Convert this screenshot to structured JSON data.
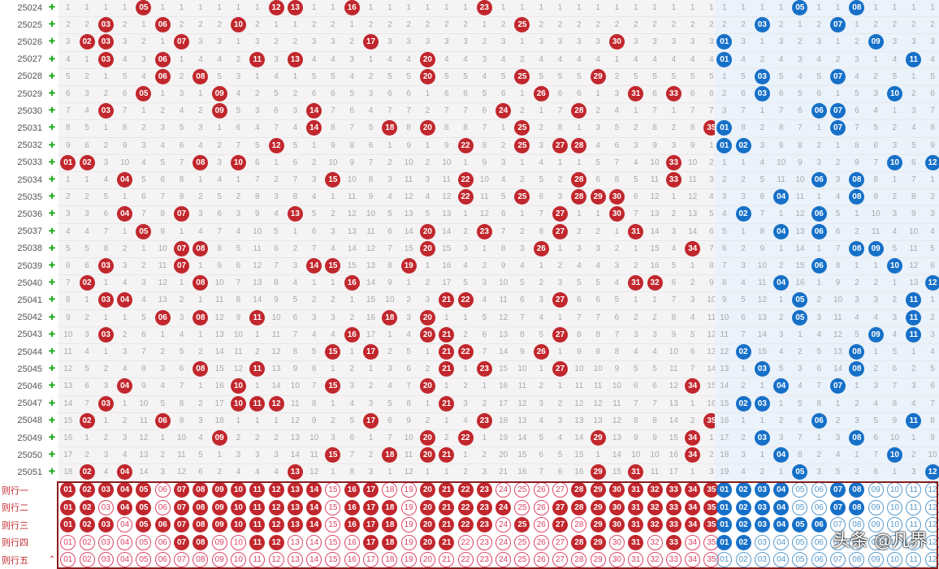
{
  "draws": [
    {
      "id": "25024",
      "red": [
        5,
        12,
        13,
        16,
        23
      ],
      "blue": [
        5,
        8
      ]
    },
    {
      "id": "25025",
      "red": [
        3,
        6,
        10,
        25
      ],
      "blue": [
        3,
        7
      ]
    },
    {
      "id": "25026",
      "red": [
        2,
        3,
        7,
        17,
        30
      ],
      "blue": [
        1,
        9
      ]
    },
    {
      "id": "25027",
      "red": [
        3,
        6,
        11,
        13,
        20
      ],
      "blue": [
        1,
        11
      ]
    },
    {
      "id": "25028",
      "red": [
        6,
        8,
        20,
        25,
        29
      ],
      "blue": [
        3,
        7
      ]
    },
    {
      "id": "25029",
      "red": [
        5,
        9,
        26,
        31,
        33
      ],
      "blue": [
        3,
        10
      ]
    },
    {
      "id": "25030",
      "red": [
        3,
        9,
        14,
        24,
        28
      ],
      "blue": [
        6,
        7
      ]
    },
    {
      "id": "25031",
      "red": [
        14,
        18,
        20,
        25,
        35
      ],
      "blue": [
        1,
        7
      ]
    },
    {
      "id": "25032",
      "red": [
        12,
        22,
        25,
        27,
        28
      ],
      "blue": [
        1,
        2
      ]
    },
    {
      "id": "25033",
      "red": [
        1,
        2,
        8,
        10,
        33
      ],
      "blue": [
        10,
        12
      ]
    },
    {
      "id": "25034",
      "red": [
        4,
        15,
        22,
        28,
        33
      ],
      "blue": [
        6,
        8
      ]
    },
    {
      "id": "25035",
      "red": [
        22,
        25,
        28,
        29,
        30
      ],
      "blue": [
        4,
        8
      ]
    },
    {
      "id": "25036",
      "red": [
        4,
        7,
        13,
        27,
        30
      ],
      "blue": [
        2,
        6
      ]
    },
    {
      "id": "25037",
      "red": [
        5,
        20,
        23,
        27,
        31
      ],
      "blue": [
        4,
        6
      ]
    },
    {
      "id": "25038",
      "red": [
        7,
        8,
        20,
        26,
        34
      ],
      "blue": [
        8,
        9
      ]
    },
    {
      "id": "25039",
      "red": [
        3,
        7,
        14,
        15,
        19
      ],
      "blue": [
        6,
        10
      ]
    },
    {
      "id": "25040",
      "red": [
        2,
        8,
        16,
        31,
        32
      ],
      "blue": [
        4,
        12
      ]
    },
    {
      "id": "25041",
      "red": [
        3,
        4,
        21,
        22,
        27
      ],
      "blue": [
        5,
        11
      ]
    },
    {
      "id": "25042",
      "red": [
        6,
        8,
        11,
        18,
        20
      ],
      "blue": [
        5,
        11
      ]
    },
    {
      "id": "25043",
      "red": [
        3,
        16,
        20,
        21,
        27
      ],
      "blue": [
        9,
        11
      ]
    },
    {
      "id": "25044",
      "red": [
        15,
        17,
        21,
        22,
        26
      ],
      "blue": [
        2,
        8
      ]
    },
    {
      "id": "25045",
      "red": [
        8,
        11,
        21,
        23,
        27
      ],
      "blue": [
        3,
        8
      ]
    },
    {
      "id": "25046",
      "red": [
        4,
        10,
        15,
        20,
        34
      ],
      "blue": [
        4,
        7
      ]
    },
    {
      "id": "25047",
      "red": [
        3,
        10,
        11,
        12,
        21
      ],
      "blue": [
        2,
        3
      ]
    },
    {
      "id": "25048",
      "red": [
        2,
        6,
        17,
        23,
        35
      ],
      "blue": [
        6,
        11
      ]
    },
    {
      "id": "25049",
      "red": [
        9,
        20,
        22,
        29,
        34
      ],
      "blue": [
        3,
        8
      ]
    },
    {
      "id": "25050",
      "red": [
        15,
        18,
        20,
        21,
        34
      ],
      "blue": [
        4,
        10
      ]
    },
    {
      "id": "25051",
      "red": [
        2,
        4,
        13,
        29,
        31
      ],
      "blue": [
        5,
        12
      ]
    }
  ],
  "rules": [
    {
      "label": "则行一",
      "red": [
        1,
        2,
        3,
        4,
        5,
        7,
        8,
        9,
        10,
        11,
        12,
        13,
        14,
        16,
        17,
        20,
        21,
        22,
        23,
        28,
        29,
        30,
        31,
        32,
        33,
        34,
        35
      ],
      "blue": [
        1,
        2,
        3,
        4,
        7,
        8
      ]
    },
    {
      "label": "则行二",
      "red": [
        1,
        2,
        4,
        5,
        7,
        8,
        9,
        10,
        11,
        12,
        13,
        14,
        16,
        17,
        18,
        20,
        21,
        22,
        23,
        24,
        27,
        28,
        29,
        30,
        31,
        32,
        33,
        34,
        35
      ],
      "blue": [
        1,
        2,
        3,
        4,
        7,
        8
      ]
    },
    {
      "label": "则行三",
      "red": [
        1,
        2,
        3,
        5,
        6,
        7,
        8,
        9,
        10,
        11,
        12,
        13,
        14,
        16,
        17,
        18,
        20,
        21,
        22,
        23,
        25,
        27,
        29,
        30,
        31,
        32,
        33,
        34,
        35
      ],
      "blue": [
        1,
        2,
        3,
        4,
        5,
        6
      ]
    },
    {
      "label": "则行四",
      "red": [
        7,
        8,
        11,
        12,
        17,
        18,
        20,
        21,
        28,
        29,
        31,
        33
      ],
      "blue": [
        1,
        2
      ]
    },
    {
      "label": "则行五",
      "red": [],
      "blue": []
    }
  ],
  "watermark": "头条 @凡界",
  "colors": {
    "red": "#c1272d",
    "blue": "#1670c8"
  }
}
